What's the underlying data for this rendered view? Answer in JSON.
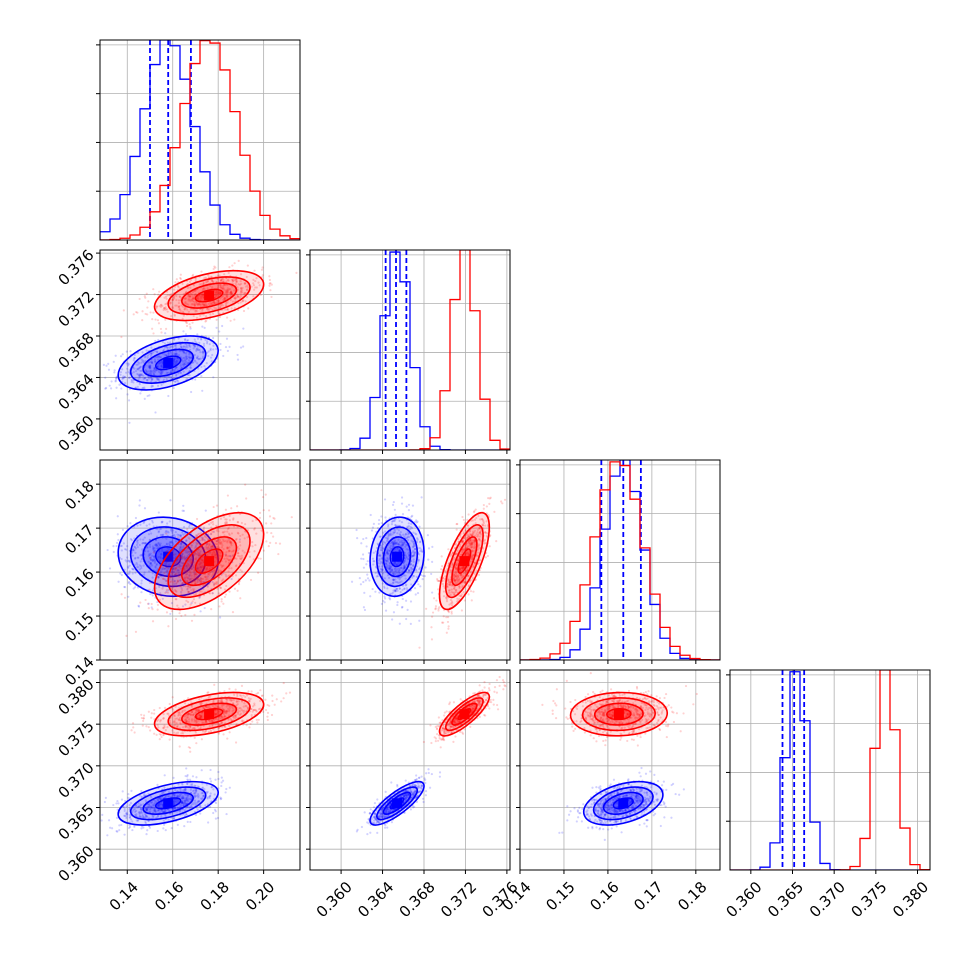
{
  "chart_data": {
    "type": "corner",
    "parameters": [
      {
        "ticks": [
          0.14,
          0.16,
          0.18,
          0.2
        ],
        "tick_labels": [
          "0.14",
          "0.16",
          "0.18",
          "0.20"
        ],
        "range": [
          0.128,
          0.216
        ]
      },
      {
        "ticks": [
          0.36,
          0.364,
          0.368,
          0.372,
          0.376
        ],
        "tick_labels": [
          "0.360",
          "0.364",
          "0.368",
          "0.372",
          "0.376"
        ],
        "range": [
          0.357,
          0.3763
        ]
      },
      {
        "ticks": [
          0.14,
          0.15,
          0.16,
          0.17,
          0.18
        ],
        "tick_labels": [
          "0.14",
          "0.15",
          "0.16",
          "0.17",
          "0.18"
        ],
        "range": [
          0.14,
          0.1855
        ]
      },
      {
        "ticks": [
          0.36,
          0.365,
          0.37,
          0.375,
          0.38
        ],
        "tick_labels": [
          "0.360",
          "0.365",
          "0.370",
          "0.375",
          "0.380"
        ],
        "range": [
          0.3575,
          0.3815
        ]
      }
    ],
    "series": [
      {
        "color": "#0000ff",
        "quantiles": [
          [
            0.15,
            0.158,
            0.168
          ],
          [
            0.3643,
            0.3653,
            0.3663
          ],
          [
            0.1585,
            0.1635,
            0.1675
          ],
          [
            0.3638,
            0.3652,
            0.3664
          ]
        ],
        "means": [
          0.158,
          0.3654,
          0.1635,
          0.3655
        ],
        "sds": [
          0.011,
          0.0013,
          0.0045,
          0.0013
        ],
        "corr": [
          [
            1,
            0.45,
            -0.1,
            0.5
          ],
          [
            0.45,
            1,
            0.1,
            0.8
          ],
          [
            -0.1,
            0.1,
            1,
            0.4
          ],
          [
            0.5,
            0.8,
            0.4,
            1
          ]
        ]
      },
      {
        "color": "#ff0000",
        "quantiles": null,
        "means": [
          0.176,
          0.3719,
          0.1625,
          0.3762
        ],
        "sds": [
          0.012,
          0.0012,
          0.0055,
          0.0013
        ],
        "corr": [
          [
            1,
            0.45,
            0.55,
            0.45
          ],
          [
            0.45,
            1,
            0.7,
            0.8
          ],
          [
            0.55,
            0.7,
            1,
            0.05
          ],
          [
            0.45,
            0.8,
            0.05,
            1
          ]
        ]
      }
    ],
    "grid": true,
    "legend": "none",
    "title": "",
    "xlabel": "",
    "ylabel": ""
  }
}
